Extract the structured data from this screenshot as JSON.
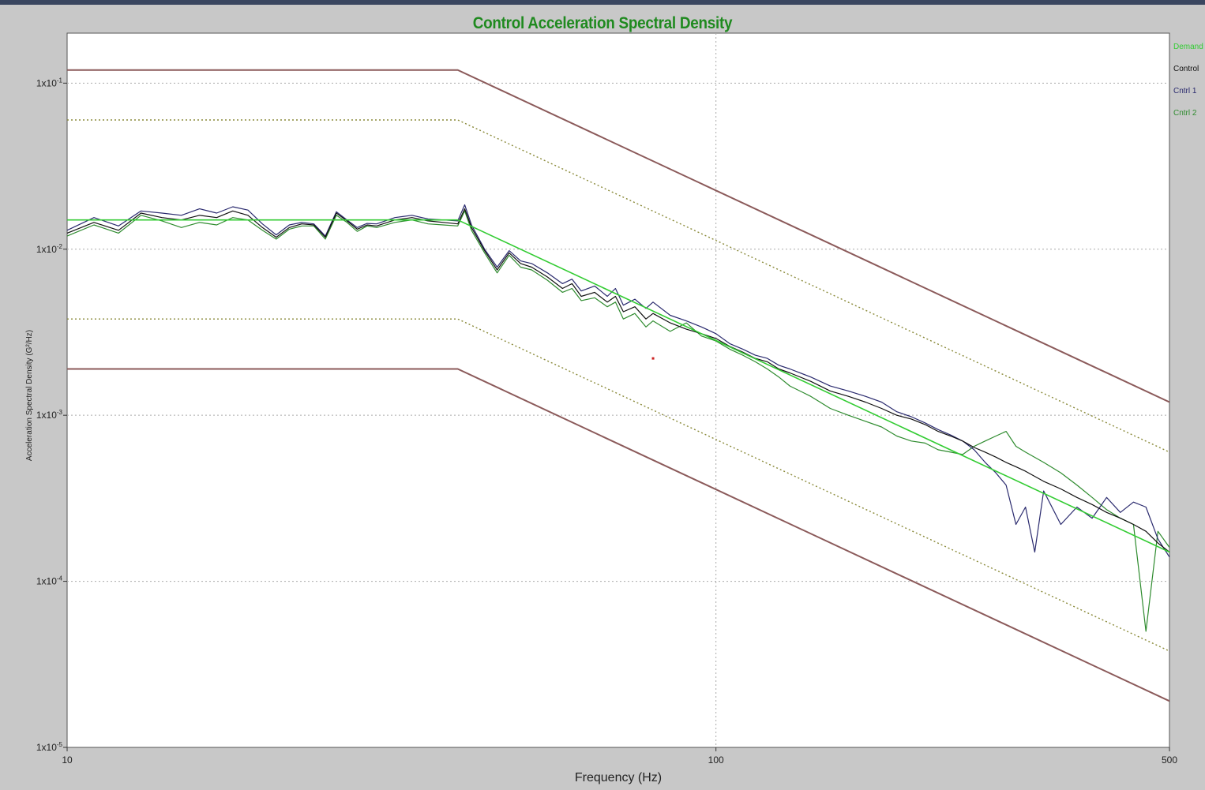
{
  "chart_data": {
    "type": "line",
    "title": "Control Acceleration Spectral Density",
    "xlabel": "Frequency (Hz)",
    "ylabel": "Acceleration Spectral Density (G²/Hz)",
    "xscale": "log",
    "yscale": "log",
    "xlim": [
      10,
      500
    ],
    "ylim": [
      1e-05,
      0.2
    ],
    "x_ticks": [
      {
        "value": 10,
        "label": "10"
      },
      {
        "value": 100,
        "label": "100"
      },
      {
        "value": 500,
        "label": "500"
      }
    ],
    "y_ticks": [
      {
        "value": 0.1,
        "base": "1x10",
        "exp": "-1"
      },
      {
        "value": 0.01,
        "base": "1x10",
        "exp": "-2"
      },
      {
        "value": 0.001,
        "base": "1x10",
        "exp": "-3"
      },
      {
        "value": 0.0001,
        "base": "1x10",
        "exp": "-4"
      },
      {
        "value": 1e-05,
        "base": "1x10",
        "exp": "-5"
      }
    ],
    "grid": "dotted",
    "legend_position": "top-right",
    "legend": [
      {
        "name": "Demand",
        "color": "#33cc33"
      },
      {
        "name": "Control",
        "color": "#111111"
      },
      {
        "name": "Cntrl 1",
        "color": "#2a2a6e"
      },
      {
        "name": "Cntrl 2",
        "color": "#2e8b2e"
      }
    ],
    "colors": {
      "abort_limit": "#8b5a5a",
      "alarm_limit": "#8a8a3a",
      "demand": "#33cc33",
      "control": "#111111",
      "cntrl1": "#2a2a6e",
      "cntrl2": "#2e8b2e",
      "grid": "#aaaaaa"
    },
    "profile": {
      "breakpoints": [
        [
          10,
          0.015
        ],
        [
          40,
          0.015
        ],
        [
          500,
          0.00015
        ]
      ],
      "upper_abort": [
        [
          10,
          0.12
        ],
        [
          40,
          0.12
        ],
        [
          500,
          0.0012
        ]
      ],
      "upper_alarm": [
        [
          10,
          0.06
        ],
        [
          40,
          0.06
        ],
        [
          500,
          0.0006
        ]
      ],
      "lower_alarm": [
        [
          10,
          0.0038
        ],
        [
          40,
          0.0038
        ],
        [
          500,
          3.8e-05
        ]
      ],
      "lower_abort": [
        [
          10,
          0.0019
        ],
        [
          40,
          0.0019
        ],
        [
          500,
          1.9e-05
        ]
      ]
    },
    "series": [
      {
        "name": "Control",
        "points": [
          [
            10,
            0.0125
          ],
          [
            11,
            0.0145
          ],
          [
            12,
            0.013
          ],
          [
            13,
            0.0165
          ],
          [
            14,
            0.0155
          ],
          [
            15,
            0.015
          ],
          [
            16,
            0.016
          ],
          [
            17,
            0.0155
          ],
          [
            18,
            0.017
          ],
          [
            19,
            0.016
          ],
          [
            20,
            0.0135
          ],
          [
            21,
            0.0118
          ],
          [
            22,
            0.0135
          ],
          [
            23,
            0.0142
          ],
          [
            24,
            0.014
          ],
          [
            25,
            0.0118
          ],
          [
            26,
            0.0165
          ],
          [
            27,
            0.0148
          ],
          [
            28,
            0.0132
          ],
          [
            29,
            0.014
          ],
          [
            30,
            0.0138
          ],
          [
            32,
            0.015
          ],
          [
            34,
            0.0155
          ],
          [
            36,
            0.0148
          ],
          [
            38,
            0.0145
          ],
          [
            40,
            0.0142
          ],
          [
            41,
            0.0175
          ],
          [
            42,
            0.0135
          ],
          [
            44,
            0.0098
          ],
          [
            46,
            0.0075
          ],
          [
            48,
            0.0095
          ],
          [
            50,
            0.0082
          ],
          [
            52,
            0.0078
          ],
          [
            55,
            0.0068
          ],
          [
            58,
            0.0058
          ],
          [
            60,
            0.0062
          ],
          [
            62,
            0.0052
          ],
          [
            65,
            0.0055
          ],
          [
            68,
            0.0048
          ],
          [
            70,
            0.0052
          ],
          [
            72,
            0.0042
          ],
          [
            75,
            0.0045
          ],
          [
            78,
            0.0038
          ],
          [
            80,
            0.0041
          ],
          [
            85,
            0.0036
          ],
          [
            90,
            0.0033
          ],
          [
            95,
            0.0031
          ],
          [
            100,
            0.0029
          ],
          [
            105,
            0.0026
          ],
          [
            110,
            0.0024
          ],
          [
            115,
            0.0022
          ],
          [
            120,
            0.0021
          ],
          [
            125,
            0.0019
          ],
          [
            130,
            0.0018
          ],
          [
            140,
            0.0016
          ],
          [
            150,
            0.0014
          ],
          [
            160,
            0.0013
          ],
          [
            170,
            0.0012
          ],
          [
            180,
            0.0011
          ],
          [
            190,
            0.001
          ],
          [
            200,
            0.00095
          ],
          [
            210,
            0.00088
          ],
          [
            220,
            0.0008
          ],
          [
            230,
            0.00075
          ],
          [
            240,
            0.0007
          ],
          [
            250,
            0.00064
          ],
          [
            260,
            0.0006
          ],
          [
            270,
            0.00056
          ],
          [
            280,
            0.00052
          ],
          [
            290,
            0.00049
          ],
          [
            300,
            0.00046
          ],
          [
            320,
            0.0004
          ],
          [
            340,
            0.00036
          ],
          [
            360,
            0.00032
          ],
          [
            380,
            0.00029
          ],
          [
            400,
            0.00026
          ],
          [
            420,
            0.00024
          ],
          [
            440,
            0.00022
          ],
          [
            460,
            0.0002
          ],
          [
            480,
            0.00017
          ],
          [
            500,
            0.00015
          ]
        ]
      },
      {
        "name": "Cntrl 1",
        "points": [
          [
            10,
            0.013
          ],
          [
            11,
            0.0155
          ],
          [
            12,
            0.0138
          ],
          [
            13,
            0.017
          ],
          [
            14,
            0.0165
          ],
          [
            15,
            0.016
          ],
          [
            16,
            0.0175
          ],
          [
            17,
            0.0165
          ],
          [
            18,
            0.018
          ],
          [
            19,
            0.0172
          ],
          [
            20,
            0.0142
          ],
          [
            21,
            0.0122
          ],
          [
            22,
            0.014
          ],
          [
            23,
            0.0145
          ],
          [
            24,
            0.0142
          ],
          [
            25,
            0.012
          ],
          [
            26,
            0.0168
          ],
          [
            27,
            0.015
          ],
          [
            28,
            0.0135
          ],
          [
            29,
            0.0143
          ],
          [
            30,
            0.0142
          ],
          [
            32,
            0.0155
          ],
          [
            34,
            0.016
          ],
          [
            36,
            0.0152
          ],
          [
            38,
            0.015
          ],
          [
            40,
            0.0148
          ],
          [
            41,
            0.0185
          ],
          [
            42,
            0.014
          ],
          [
            44,
            0.01
          ],
          [
            46,
            0.0078
          ],
          [
            48,
            0.0098
          ],
          [
            50,
            0.0085
          ],
          [
            52,
            0.0082
          ],
          [
            55,
            0.0072
          ],
          [
            58,
            0.0062
          ],
          [
            60,
            0.0066
          ],
          [
            62,
            0.0056
          ],
          [
            65,
            0.006
          ],
          [
            68,
            0.0052
          ],
          [
            70,
            0.0058
          ],
          [
            72,
            0.0046
          ],
          [
            75,
            0.005
          ],
          [
            78,
            0.0044
          ],
          [
            80,
            0.0048
          ],
          [
            85,
            0.004
          ],
          [
            90,
            0.0037
          ],
          [
            95,
            0.0034
          ],
          [
            100,
            0.0031
          ],
          [
            105,
            0.0027
          ],
          [
            110,
            0.0025
          ],
          [
            115,
            0.0023
          ],
          [
            120,
            0.0022
          ],
          [
            125,
            0.002
          ],
          [
            130,
            0.0019
          ],
          [
            140,
            0.0017
          ],
          [
            150,
            0.0015
          ],
          [
            160,
            0.0014
          ],
          [
            170,
            0.0013
          ],
          [
            180,
            0.0012
          ],
          [
            190,
            0.00105
          ],
          [
            200,
            0.00098
          ],
          [
            210,
            0.0009
          ],
          [
            220,
            0.00082
          ],
          [
            230,
            0.00076
          ],
          [
            240,
            0.0007
          ],
          [
            250,
            0.00062
          ],
          [
            260,
            0.00052
          ],
          [
            270,
            0.00045
          ],
          [
            280,
            0.00038
          ],
          [
            290,
            0.00022
          ],
          [
            300,
            0.00028
          ],
          [
            310,
            0.00015
          ],
          [
            320,
            0.00035
          ],
          [
            340,
            0.00022
          ],
          [
            360,
            0.00028
          ],
          [
            380,
            0.00024
          ],
          [
            400,
            0.00032
          ],
          [
            420,
            0.00026
          ],
          [
            440,
            0.0003
          ],
          [
            460,
            0.00028
          ],
          [
            480,
            0.00018
          ],
          [
            500,
            0.00014
          ]
        ]
      },
      {
        "name": "Cntrl 2",
        "points": [
          [
            10,
            0.012
          ],
          [
            11,
            0.014
          ],
          [
            12,
            0.0125
          ],
          [
            13,
            0.016
          ],
          [
            14,
            0.0148
          ],
          [
            15,
            0.0135
          ],
          [
            16,
            0.0145
          ],
          [
            17,
            0.014
          ],
          [
            18,
            0.0155
          ],
          [
            19,
            0.015
          ],
          [
            20,
            0.013
          ],
          [
            21,
            0.0115
          ],
          [
            22,
            0.0132
          ],
          [
            23,
            0.0138
          ],
          [
            24,
            0.0138
          ],
          [
            25,
            0.0115
          ],
          [
            26,
            0.016
          ],
          [
            27,
            0.0145
          ],
          [
            28,
            0.0128
          ],
          [
            29,
            0.0138
          ],
          [
            30,
            0.0135
          ],
          [
            32,
            0.0145
          ],
          [
            34,
            0.015
          ],
          [
            36,
            0.0142
          ],
          [
            38,
            0.014
          ],
          [
            40,
            0.0138
          ],
          [
            41,
            0.017
          ],
          [
            42,
            0.013
          ],
          [
            44,
            0.0095
          ],
          [
            46,
            0.0072
          ],
          [
            48,
            0.0092
          ],
          [
            50,
            0.0078
          ],
          [
            52,
            0.0075
          ],
          [
            55,
            0.0065
          ],
          [
            58,
            0.0055
          ],
          [
            60,
            0.0058
          ],
          [
            62,
            0.0049
          ],
          [
            65,
            0.0051
          ],
          [
            68,
            0.0045
          ],
          [
            70,
            0.0048
          ],
          [
            72,
            0.0038
          ],
          [
            75,
            0.0041
          ],
          [
            78,
            0.0034
          ],
          [
            80,
            0.0037
          ],
          [
            85,
            0.0032
          ],
          [
            90,
            0.0036
          ],
          [
            95,
            0.003
          ],
          [
            100,
            0.0028
          ],
          [
            105,
            0.0025
          ],
          [
            110,
            0.0023
          ],
          [
            115,
            0.0021
          ],
          [
            120,
            0.0019
          ],
          [
            125,
            0.0017
          ],
          [
            130,
            0.0015
          ],
          [
            140,
            0.0013
          ],
          [
            150,
            0.0011
          ],
          [
            160,
            0.001
          ],
          [
            170,
            0.00092
          ],
          [
            180,
            0.00085
          ],
          [
            190,
            0.00075
          ],
          [
            200,
            0.0007
          ],
          [
            210,
            0.00068
          ],
          [
            220,
            0.00062
          ],
          [
            230,
            0.0006
          ],
          [
            240,
            0.00058
          ],
          [
            250,
            0.00065
          ],
          [
            260,
            0.0007
          ],
          [
            270,
            0.00075
          ],
          [
            280,
            0.0008
          ],
          [
            290,
            0.00065
          ],
          [
            300,
            0.0006
          ],
          [
            320,
            0.00052
          ],
          [
            340,
            0.00045
          ],
          [
            360,
            0.00038
          ],
          [
            380,
            0.00032
          ],
          [
            400,
            0.00027
          ],
          [
            420,
            0.00024
          ],
          [
            440,
            0.00022
          ],
          [
            460,
            5e-05
          ],
          [
            480,
            0.0002
          ],
          [
            500,
            0.00016
          ]
        ]
      },
      {
        "name": "Demand",
        "points": [
          [
            10,
            0.015
          ],
          [
            40,
            0.015
          ],
          [
            500,
            0.00015
          ]
        ]
      }
    ],
    "marker": {
      "x": 80,
      "y": 0.0022,
      "color": "#cc2222"
    }
  }
}
